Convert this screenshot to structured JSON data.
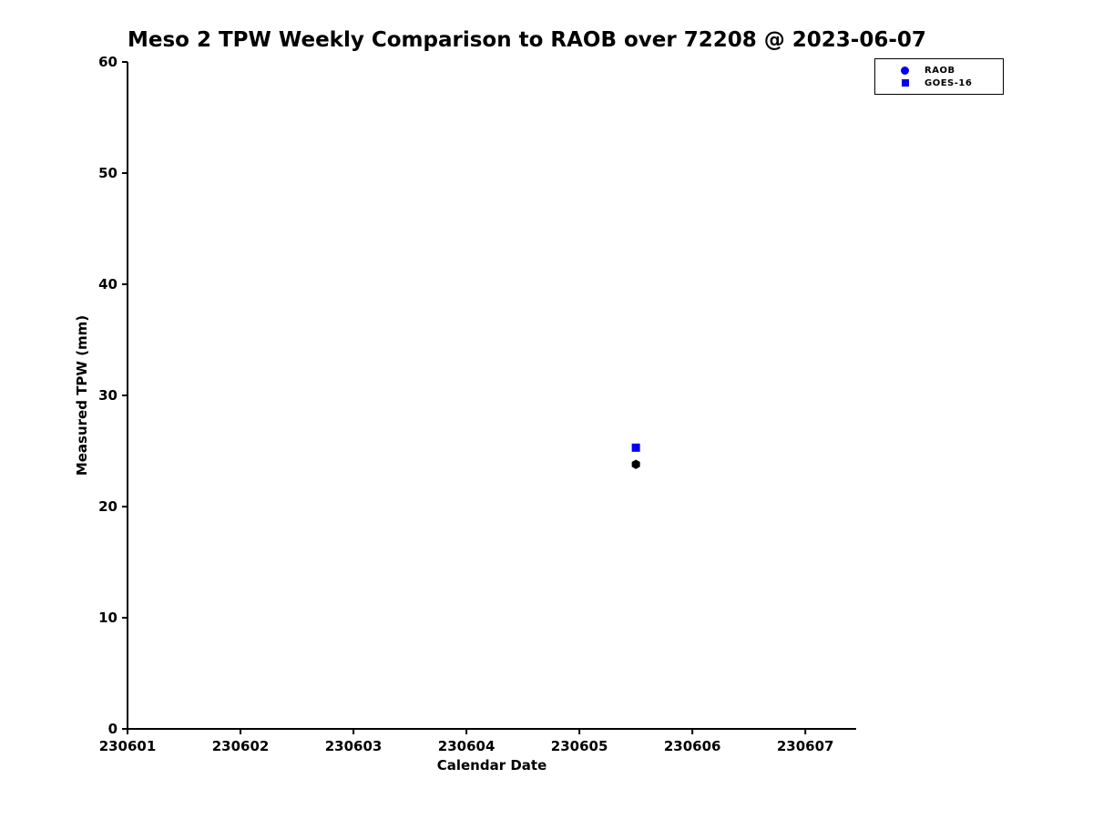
{
  "chart_data": {
    "type": "scatter",
    "title": "Meso 2 TPW Weekly Comparison to RAOB over 72208 @ 2023-06-07",
    "xlabel": "Calendar Date",
    "ylabel": "Measured TPW (mm)",
    "xlim": [
      230601,
      230607.45
    ],
    "ylim": [
      0,
      60
    ],
    "xticks": [
      230601,
      230602,
      230603,
      230604,
      230605,
      230606,
      230607
    ],
    "yticks": [
      0,
      10,
      20,
      30,
      40,
      50,
      60
    ],
    "grid": false,
    "legend_position": "top-right",
    "axis_color": "#000000",
    "series": [
      {
        "name": "RAOB",
        "legend_marker": "circle",
        "legend_color": "#0000ee",
        "plot_marker": "hexagon",
        "plot_color": "#000000",
        "points": [
          {
            "x": 230605.5,
            "y": 23.8
          }
        ]
      },
      {
        "name": "GOES-16",
        "legend_marker": "square",
        "legend_color": "#0000ee",
        "plot_marker": "square",
        "plot_color": "#0000ee",
        "points": [
          {
            "x": 230605.5,
            "y": 25.3
          }
        ]
      }
    ]
  }
}
